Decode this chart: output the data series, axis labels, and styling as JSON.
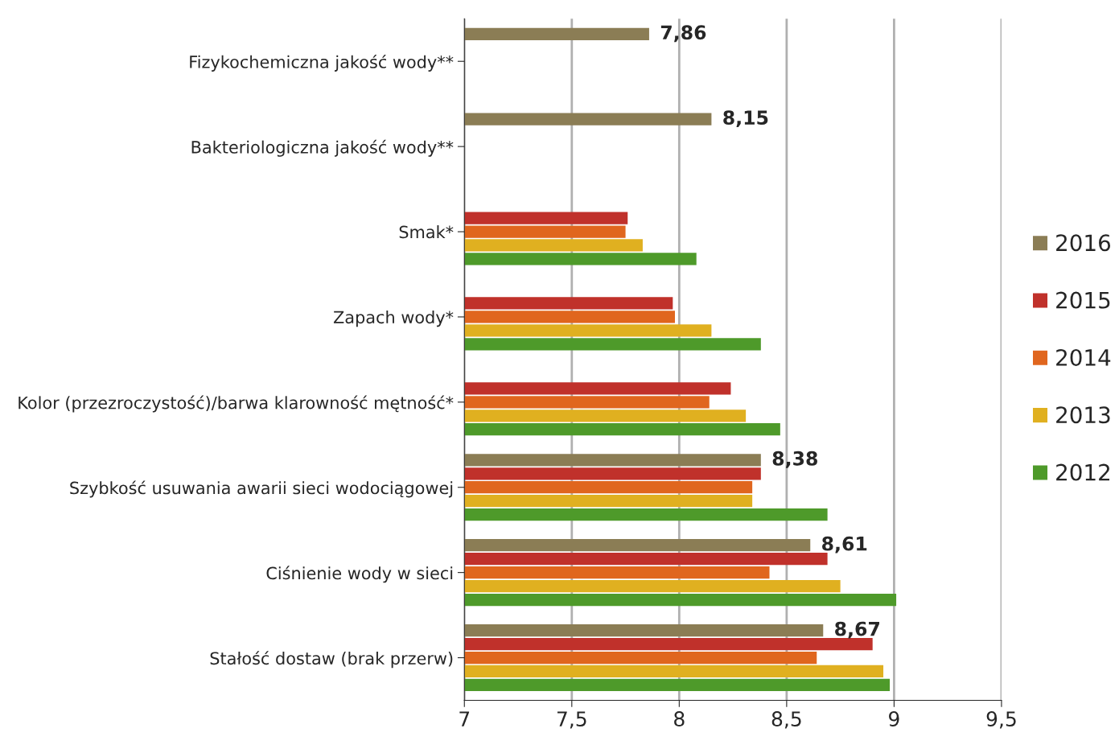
{
  "chart_data": {
    "type": "bar",
    "orientation": "horizontal",
    "categories": [
      "Fizykochemiczna jakość wody**",
      "Bakteriologiczna jakość wody**",
      "Smak*",
      "Zapach wody*",
      "Kolor (przezroczystość)/barwa klarowność mętność*",
      "Szybkość usuwania awarii sieci wodociągowej",
      "Ciśnienie wody w sieci",
      "Stałość dostaw (brak przerw)"
    ],
    "series": [
      {
        "name": "2016",
        "color": "#8b7d55",
        "values": [
          7.86,
          8.15,
          null,
          null,
          null,
          8.38,
          8.61,
          8.67
        ],
        "value_labels": [
          "7,86",
          "8,15",
          null,
          null,
          null,
          "8,38",
          "8,61",
          "8,67"
        ]
      },
      {
        "name": "2015",
        "color": "#c0312b",
        "values": [
          null,
          null,
          7.76,
          7.97,
          8.24,
          8.38,
          8.69,
          8.9
        ]
      },
      {
        "name": "2014",
        "color": "#e0661e",
        "values": [
          null,
          null,
          7.75,
          7.98,
          8.14,
          8.34,
          8.42,
          8.64
        ]
      },
      {
        "name": "2013",
        "color": "#e0b020",
        "values": [
          null,
          null,
          7.83,
          8.15,
          8.31,
          8.34,
          8.75,
          8.95
        ]
      },
      {
        "name": "2012",
        "color": "#4e9a2a",
        "values": [
          null,
          null,
          8.08,
          8.38,
          8.47,
          8.69,
          9.01,
          8.98
        ]
      }
    ],
    "xlim": [
      7,
      9.5
    ],
    "xticks": [
      7,
      {
        "value": 7.5,
        "label": "7,5"
      },
      8,
      {
        "value": 8.5,
        "label": "8,5"
      },
      9,
      {
        "value": 9.5,
        "label": "9,5"
      }
    ],
    "grid": "x",
    "legend": "right"
  }
}
